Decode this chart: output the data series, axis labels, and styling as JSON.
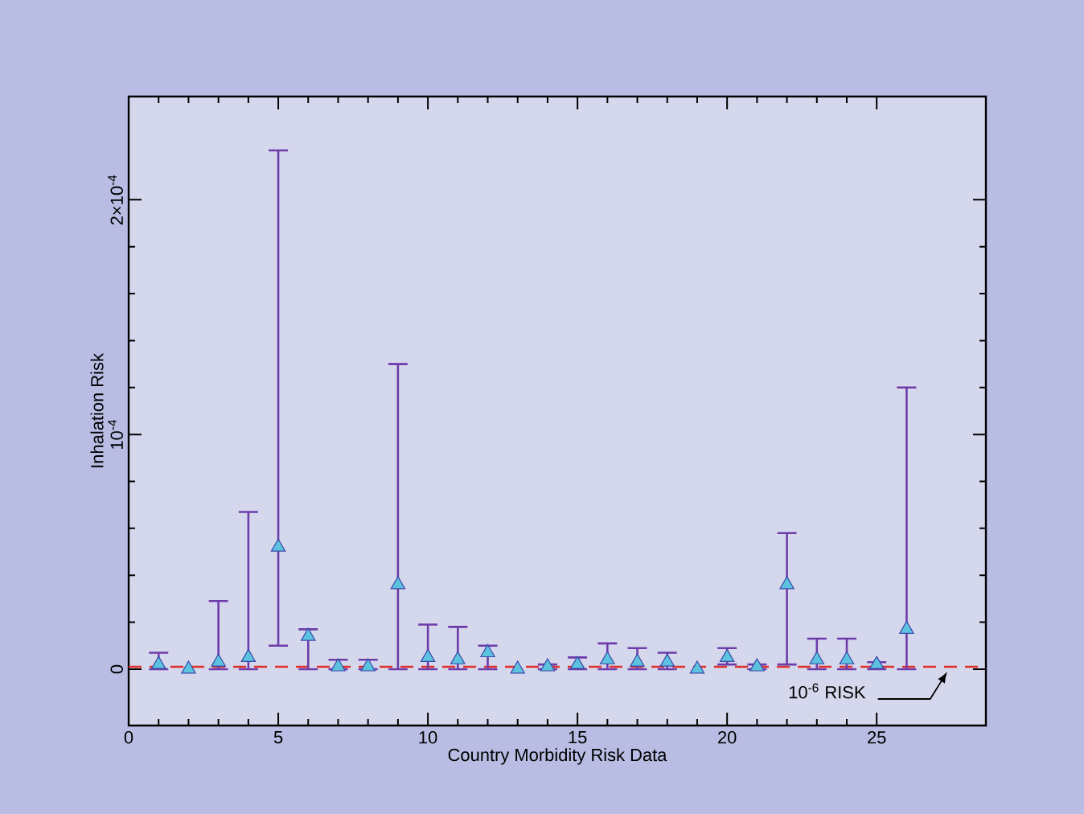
{
  "chart_data": {
    "type": "scatter",
    "xlabel": "Country Morbidity Risk Data",
    "ylabel": "Inhalation Risk",
    "x": [
      1,
      2,
      3,
      4,
      5,
      6,
      7,
      8,
      9,
      10,
      11,
      12,
      13,
      14,
      15,
      16,
      17,
      18,
      19,
      20,
      21,
      22,
      23,
      24,
      25,
      26
    ],
    "values": [
      2e-06,
      0,
      3e-06,
      5e-06,
      5.2e-05,
      1.4e-05,
      1e-06,
      1e-06,
      3.6e-05,
      5e-06,
      4e-06,
      7e-06,
      0,
      1e-06,
      2e-06,
      4e-06,
      3e-06,
      3e-06,
      0,
      5e-06,
      1e-06,
      3.6e-05,
      4e-06,
      4e-06,
      2e-06,
      1.7e-05
    ],
    "errors": [
      [
        0,
        7e-06
      ],
      null,
      [
        0,
        2.9e-05
      ],
      [
        0,
        6.7e-05
      ],
      [
        1e-05,
        0.000221
      ],
      [
        0,
        1.7e-05
      ],
      [
        0,
        4e-06
      ],
      [
        0,
        4e-06
      ],
      [
        0,
        0.00013
      ],
      [
        0,
        1.9e-05
      ],
      [
        0,
        1.8e-05
      ],
      [
        0,
        1e-05
      ],
      null,
      [
        0,
        2e-06
      ],
      [
        0,
        5e-06
      ],
      [
        0,
        1.1e-05
      ],
      [
        0,
        9e-06
      ],
      [
        0,
        7e-06
      ],
      null,
      [
        2e-06,
        9e-06
      ],
      [
        0,
        2e-06
      ],
      [
        2e-06,
        5.8e-05
      ],
      [
        0,
        1.3e-05
      ],
      [
        0,
        1.3e-05
      ],
      [
        0,
        3e-06
      ],
      [
        0,
        0.00012
      ]
    ],
    "color": "#5bc3de",
    "marker": "triangle",
    "xlim": [
      0,
      28.65
    ],
    "ylim": [
      -2.4e-05,
      0.000244
    ],
    "xticks": [
      0,
      5,
      10,
      15,
      20,
      25
    ],
    "yticks": [
      0,
      {
        "value": 0.0001,
        "label": "10$^{-4}$"
      },
      {
        "value": 0.0002,
        "label": "2×10$^{-4}$"
      }
    ],
    "ref_lines": [
      {
        "axis": "y",
        "value": 1e-06,
        "label": "10$^{-6}$ RISK",
        "color": "#e0302a",
        "line_style": "dashed"
      }
    ],
    "grid": false
  }
}
